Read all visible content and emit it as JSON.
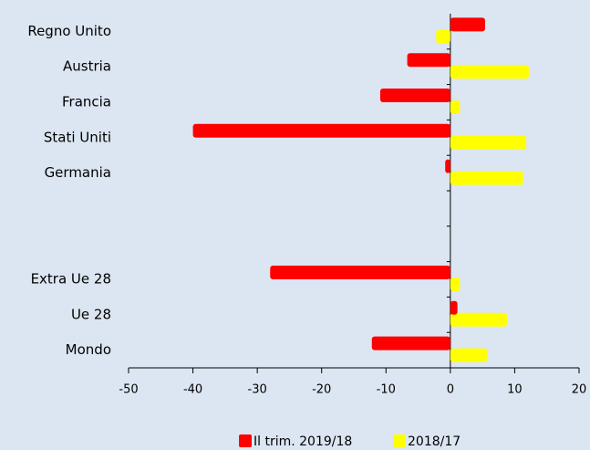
{
  "chart_data": {
    "type": "hbar",
    "categories": [
      "Regno Unito",
      "Austria",
      "Francia",
      "Stati Uniti",
      "Germania",
      null,
      null,
      "Extra Ue 28",
      "Ue 28",
      "Mondo"
    ],
    "series": [
      {
        "name": "Il trim. 2019/18",
        "color": "#ff0000",
        "values": [
          5.4,
          -6.7,
          -10.9,
          -40,
          -0.8,
          null,
          null,
          -28,
          1.1,
          -12.2
        ]
      },
      {
        "name": "2018/17",
        "color": "#ffff00",
        "values": [
          -2.2,
          12.2,
          1.5,
          11.8,
          11.3,
          null,
          null,
          1.5,
          8.8,
          5.7
        ]
      }
    ],
    "xlim": [
      -50,
      20
    ],
    "xticks": [
      -50,
      -40,
      -30,
      -20,
      -10,
      0,
      10,
      20
    ],
    "legend": "bottom"
  }
}
